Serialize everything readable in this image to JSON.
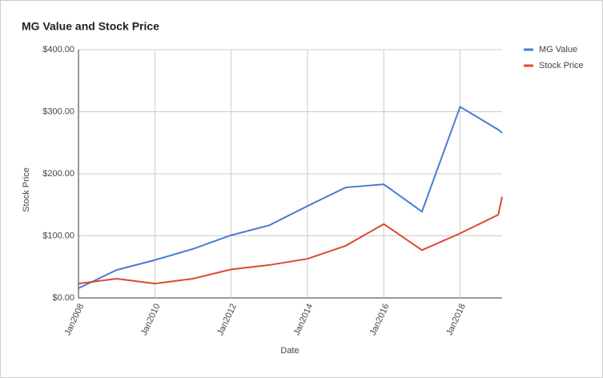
{
  "chart_data": {
    "type": "line",
    "title": "MG Value and Stock Price",
    "x_label": "Date",
    "y_label": "Stock Price",
    "x": [
      2008,
      2009,
      2010,
      2011,
      2012,
      2013,
      2014,
      2015,
      2016,
      2017,
      2018,
      2019,
      2019.1
    ],
    "series": [
      {
        "name": "MG Value",
        "color": "#4a7bd0",
        "values": [
          15.5,
          45,
          61,
          79,
          101,
          117,
          148,
          178,
          183,
          139,
          308,
          271,
          266
        ]
      },
      {
        "name": "Stock Price",
        "color": "#db4a32",
        "values": [
          23,
          31,
          23,
          31,
          46,
          53,
          63,
          84,
          119,
          77,
          104,
          134,
          163
        ]
      }
    ],
    "xlim": [
      2008,
      2019.1
    ],
    "xticks": [
      {
        "value": 2008,
        "label": "Jan2008"
      },
      {
        "value": 2010,
        "label": "Jan2010"
      },
      {
        "value": 2012,
        "label": "Jan2012"
      },
      {
        "value": 2014,
        "label": "Jan2014"
      },
      {
        "value": 2016,
        "label": "Jan2016"
      },
      {
        "value": 2018,
        "label": "Jan2018"
      }
    ],
    "ylim": [
      0,
      400
    ],
    "yticks": [
      {
        "value": 0,
        "label": "$0.00"
      },
      {
        "value": 100,
        "label": "$100.00"
      },
      {
        "value": 200,
        "label": "$200.00"
      },
      {
        "value": 300,
        "label": "$300.00"
      },
      {
        "value": 400,
        "label": "$400.00"
      }
    ],
    "grid": true,
    "legend": "right"
  }
}
